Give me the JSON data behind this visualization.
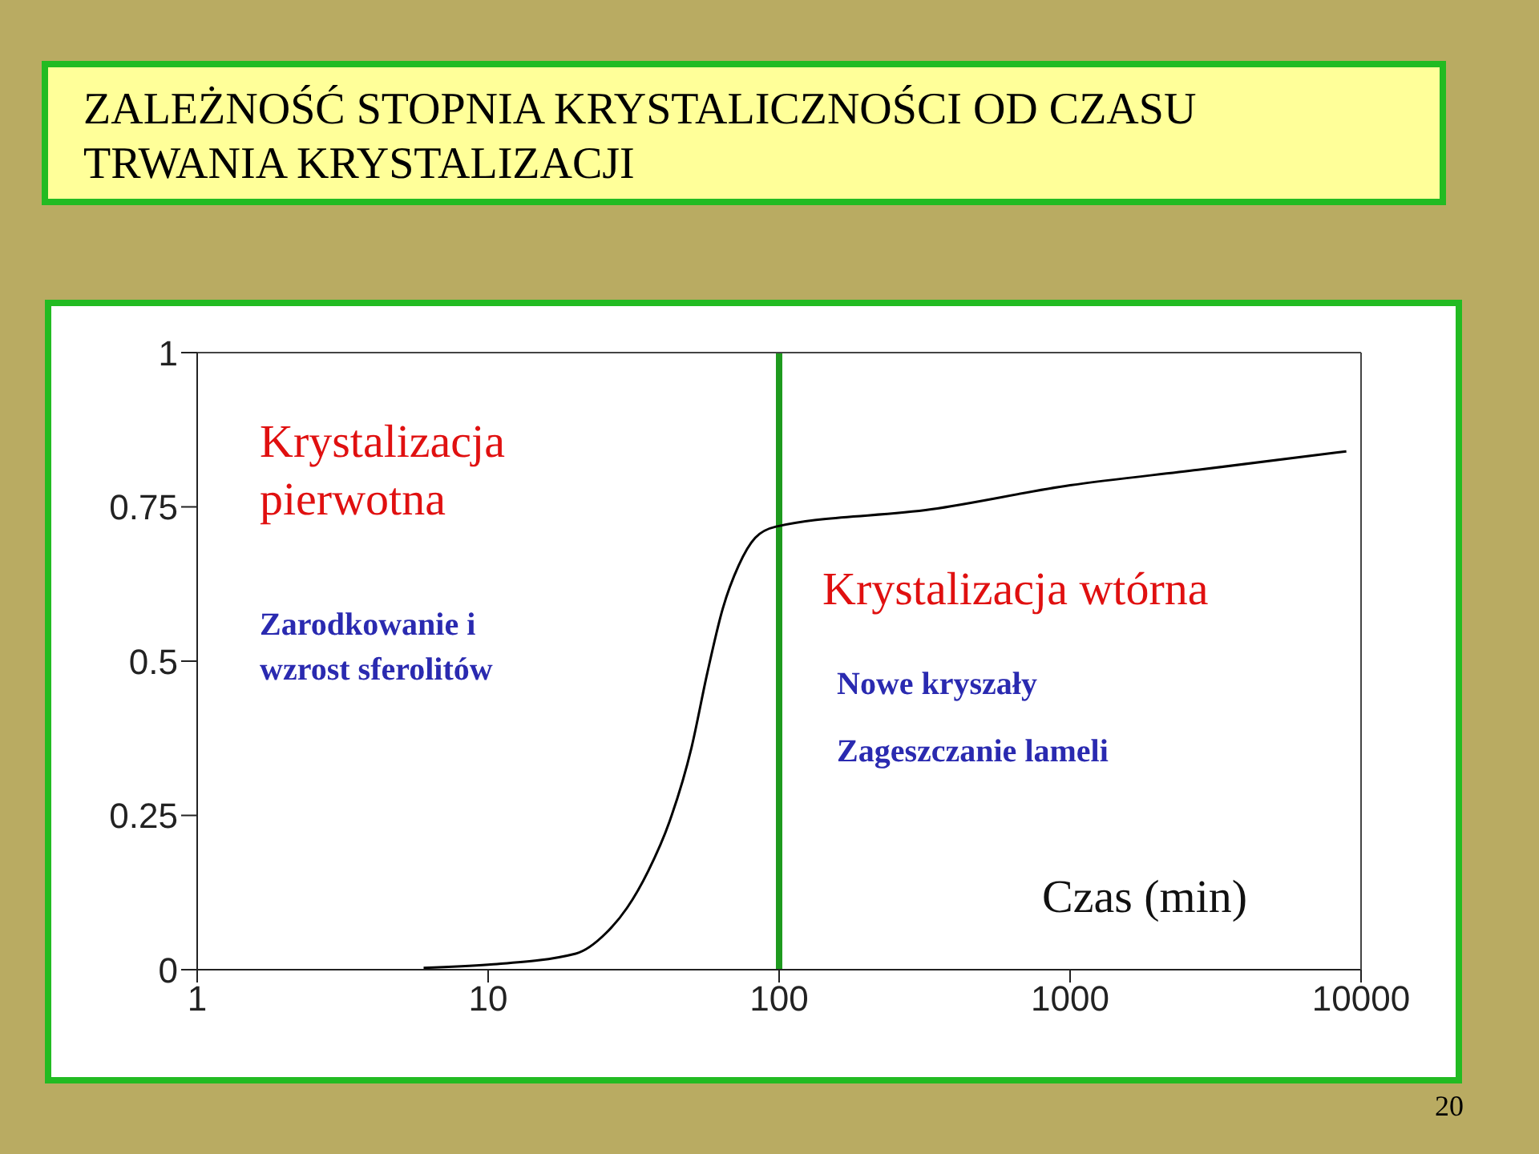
{
  "chart_data": {
    "type": "line",
    "title": "ZALEŻNOŚĆ STOPNIA KRYSTALICZNOŚCI OD CZASU TRWANIA KRYSTALIZACJI",
    "xlabel": "Czas (min)",
    "x": [
      6,
      10,
      20,
      25.5,
      30,
      35.5,
      42,
      50,
      56.6,
      64,
      72.6,
      82.8,
      97.6,
      333,
      1000,
      2750,
      8900
    ],
    "series": [
      {
        "color": "#000000",
        "values": [
          0.003,
          0.008,
          0.026,
          0.06,
          0.1,
          0.16,
          0.24,
          0.36,
          0.48,
          0.585,
          0.655,
          0.7,
          0.718,
          0.746,
          0.785,
          0.81,
          0.84
        ]
      }
    ],
    "log": "x",
    "xlim": [
      1,
      10000
    ],
    "xticks": [
      1,
      10,
      100,
      1000,
      10000
    ],
    "ylim": [
      0,
      1
    ],
    "yticks": [
      0,
      0.25,
      0.5,
      0.75,
      1
    ],
    "grid": false,
    "legend": false,
    "marker": "none",
    "line_style": "solid",
    "ref_lines": [
      {
        "axis": "x",
        "value": 100,
        "color": "#1e9a1e"
      }
    ],
    "annotations": [
      "Krystalizacja pierwotna",
      "Zarodkowanie i wzrost sferolitów",
      "Krystalizacja wtórna",
      "Nowe kryszały",
      "Zageszczanie lameli",
      "20"
    ]
  }
}
